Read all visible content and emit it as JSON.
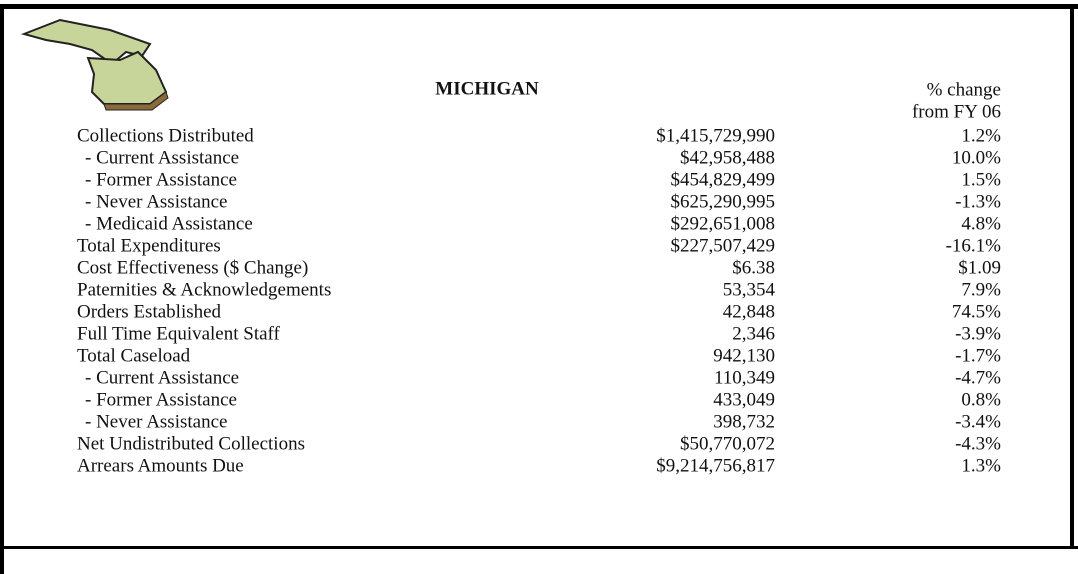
{
  "header": {
    "title": "MICHIGAN",
    "col_header_line1": "% change",
    "col_header_line2": "from FY 06"
  },
  "table": {
    "rows": [
      [
        "Collections Distributed",
        "$1,415,729,990",
        "1.2%"
      ],
      [
        "- Current Assistance",
        "$42,958,488",
        "10.0%"
      ],
      [
        "- Former Assistance",
        "$454,829,499",
        "1.5%"
      ],
      [
        "- Never Assistance",
        "$625,290,995",
        "-1.3%"
      ],
      [
        "- Medicaid Assistance",
        "$292,651,008",
        "4.8%"
      ],
      [
        "Total Expenditures",
        "$227,507,429",
        "-16.1%"
      ],
      [
        "Cost Effectiveness ($ Change)",
        "$6.38",
        "$1.09"
      ],
      [
        "Paternities & Acknowledgements",
        "53,354",
        "7.9%"
      ],
      [
        "Orders Established",
        "42,848",
        "74.5%"
      ],
      [
        "Full Time Equivalent Staff",
        "2,346",
        "-3.9%"
      ],
      [
        "Total Caseload",
        "942,130",
        "-1.7%"
      ],
      [
        "- Current Assistance",
        "110,349",
        "-4.7%"
      ],
      [
        "- Former Assistance",
        "433,049",
        "0.8%"
      ],
      [
        "- Never Assistance",
        "398,732",
        "-3.4%"
      ],
      [
        "Net Undistributed Collections",
        "$50,770,072",
        "-4.3%"
      ],
      [
        "Arrears Amounts Due",
        "$9,214,756,817",
        "1.3%"
      ]
    ]
  }
}
